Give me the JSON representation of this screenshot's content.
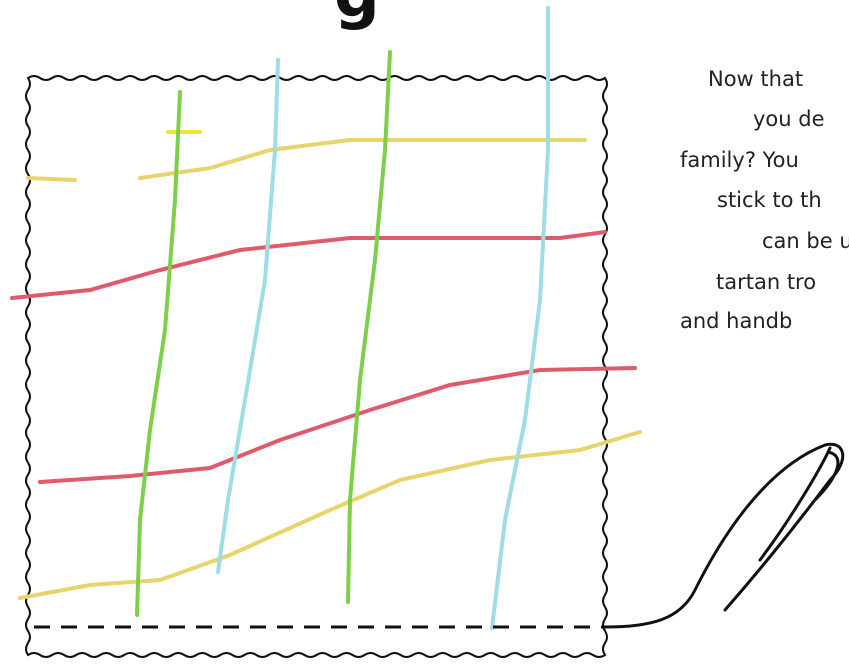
{
  "header": {
    "title": "g"
  },
  "text": {
    "lines": [
      "Now that",
      "you de",
      "family? You",
      "stick to th",
      "can be u",
      "tartan tro",
      "and handb"
    ]
  }
}
